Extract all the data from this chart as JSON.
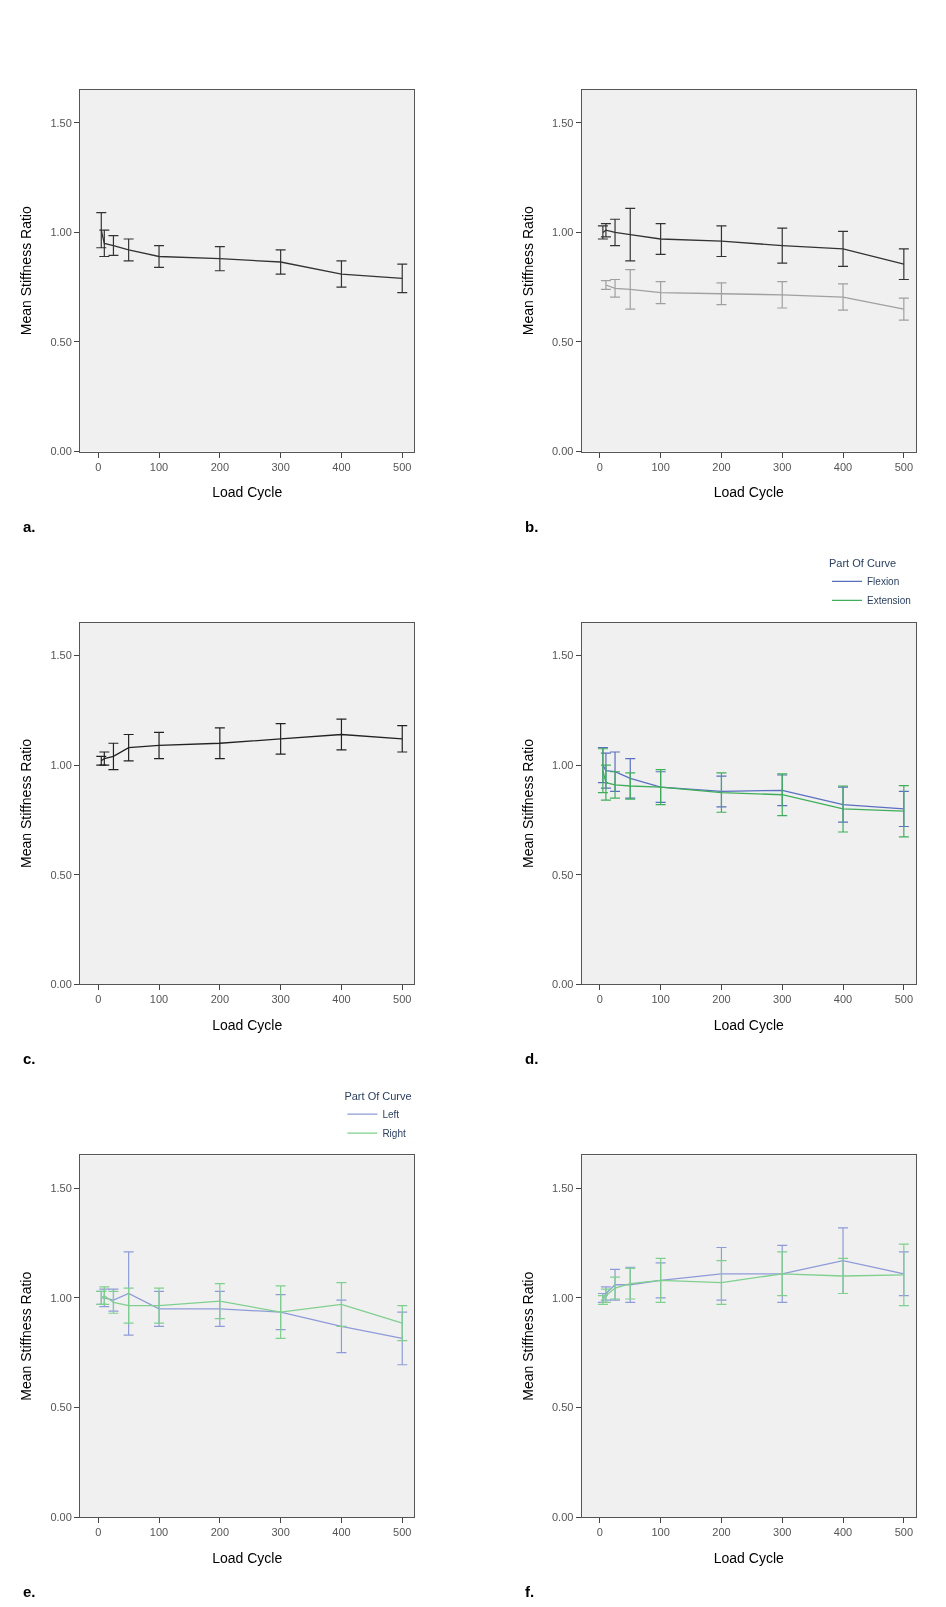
{
  "chart_data": [
    {
      "type": "line",
      "xlabel": "Load Cycle",
      "ylabel": "Mean Stiffness Ratio",
      "annotations": [
        "a."
      ],
      "x": [
        5,
        10,
        25,
        50,
        100,
        200,
        300,
        400,
        500
      ],
      "xlim": [
        -30,
        520
      ],
      "xticks": [
        0,
        100,
        200,
        300,
        400,
        500
      ],
      "ylim": [
        0,
        1.65
      ],
      "yticks": [
        {
          "value": 0,
          "label": "0.00"
        },
        {
          "value": 0.5,
          "label": "0.50"
        },
        {
          "value": 1,
          "label": "1.00"
        },
        {
          "value": 1.5,
          "label": "1.50"
        }
      ],
      "grid": false,
      "legend": false,
      "marker": "none",
      "series": [
        {
          "color": "#333333",
          "values": [
            1.01,
            0.95,
            0.94,
            0.92,
            0.89,
            0.88,
            0.865,
            0.81,
            0.79
          ],
          "errors": [
            0.08,
            0.06,
            0.045,
            0.05,
            0.05,
            0.055,
            0.055,
            0.06,
            0.065
          ]
        }
      ]
    },
    {
      "type": "line",
      "xlabel": "Load Cycle",
      "ylabel": "Mean Stiffness Ratio",
      "annotations": [
        "b."
      ],
      "x": [
        5,
        10,
        25,
        50,
        100,
        200,
        300,
        400,
        500
      ],
      "xlim": [
        -30,
        520
      ],
      "xticks": [
        0,
        100,
        200,
        300,
        400,
        500
      ],
      "ylim": [
        0,
        1.65
      ],
      "yticks": [
        {
          "value": 0,
          "label": "0.00"
        },
        {
          "value": 0.5,
          "label": "0.50"
        },
        {
          "value": 1,
          "label": "1.00"
        },
        {
          "value": 1.5,
          "label": "1.50"
        }
      ],
      "grid": false,
      "legend": false,
      "marker": "none",
      "series": [
        {
          "color": "#333333",
          "values": [
            1.0,
            1.01,
            1.0,
            0.99,
            0.97,
            0.96,
            0.94,
            0.925,
            0.855
          ],
          "errors": [
            0.03,
            0.03,
            0.06,
            0.12,
            0.07,
            0.07,
            0.08,
            0.08,
            0.07
          ]
        },
        {
          "color": "#a0a0a0",
          "x": [
            10,
            25,
            50,
            100,
            200,
            300,
            400,
            500
          ],
          "values": [
            0.76,
            0.745,
            0.74,
            0.725,
            0.72,
            0.715,
            0.705,
            0.65
          ],
          "errors": [
            0.02,
            0.04,
            0.09,
            0.05,
            0.05,
            0.06,
            0.06,
            0.05
          ]
        }
      ]
    },
    {
      "type": "line",
      "xlabel": "Load Cycle",
      "ylabel": "Mean Stiffness Ratio",
      "annotations": [
        "c."
      ],
      "x": [
        5,
        10,
        25,
        50,
        100,
        200,
        300,
        400,
        500
      ],
      "xlim": [
        -30,
        520
      ],
      "xticks": [
        0,
        100,
        200,
        300,
        400,
        500
      ],
      "ylim": [
        0,
        1.65
      ],
      "yticks": [
        {
          "value": 0,
          "label": "0.00"
        },
        {
          "value": 0.5,
          "label": "0.50"
        },
        {
          "value": 1,
          "label": "1.00"
        },
        {
          "value": 1.5,
          "label": "1.50"
        }
      ],
      "grid": false,
      "legend": false,
      "marker": "none",
      "series": [
        {
          "color": "#222222",
          "values": [
            1.02,
            1.03,
            1.04,
            1.08,
            1.09,
            1.1,
            1.12,
            1.14,
            1.12
          ],
          "errors": [
            0.02,
            0.03,
            0.06,
            0.06,
            0.06,
            0.07,
            0.07,
            0.07,
            0.06
          ]
        }
      ]
    },
    {
      "type": "line",
      "xlabel": "Load Cycle",
      "ylabel": "Mean Stiffness Ratio",
      "annotations": [
        "d."
      ],
      "legend_title": "Part Of Curve",
      "x": [
        5,
        10,
        25,
        50,
        100,
        200,
        300,
        400,
        500
      ],
      "xlim": [
        -30,
        520
      ],
      "xticks": [
        0,
        100,
        200,
        300,
        400,
        500
      ],
      "ylim": [
        0,
        1.65
      ],
      "yticks": [
        {
          "value": 0,
          "label": "0.00"
        },
        {
          "value": 0.5,
          "label": "0.50"
        },
        {
          "value": 1,
          "label": "1.00"
        },
        {
          "value": 1.5,
          "label": "1.50"
        }
      ],
      "grid": false,
      "legend": "top right",
      "marker": "none",
      "series": [
        {
          "name": "Flexion",
          "color": "#5a6fc0",
          "values": [
            1.0,
            0.975,
            0.97,
            0.94,
            0.9,
            0.88,
            0.885,
            0.82,
            0.8
          ],
          "errors": [
            0.08,
            0.08,
            0.09,
            0.09,
            0.07,
            0.07,
            0.07,
            0.08,
            0.08
          ]
        },
        {
          "name": "Extension",
          "color": "#3fae5a",
          "values": [
            0.975,
            0.92,
            0.91,
            0.905,
            0.9,
            0.875,
            0.865,
            0.8,
            0.79
          ],
          "errors": [
            0.1,
            0.08,
            0.06,
            0.06,
            0.08,
            0.09,
            0.095,
            0.105,
            0.117
          ]
        }
      ]
    },
    {
      "type": "line",
      "xlabel": "Load Cycle",
      "ylabel": "Mean Stiffness Ratio",
      "annotations": [
        "e."
      ],
      "legend_title": "Part Of Curve",
      "x": [
        5,
        10,
        25,
        50,
        100,
        200,
        300,
        400,
        500
      ],
      "xlim": [
        -30,
        520
      ],
      "xticks": [
        0,
        100,
        200,
        300,
        400,
        500
      ],
      "ylim": [
        0,
        1.65
      ],
      "yticks": [
        {
          "value": 0,
          "label": "0.00"
        },
        {
          "value": 0.5,
          "label": "0.50"
        },
        {
          "value": 1,
          "label": "1.00"
        },
        {
          "value": 1.5,
          "label": "1.50"
        }
      ],
      "grid": false,
      "legend": "top right",
      "marker": "none",
      "series": [
        {
          "name": "Left",
          "color": "#8e9bd8",
          "values": [
            1.0,
            1.0,
            0.99,
            1.02,
            0.95,
            0.95,
            0.935,
            0.87,
            0.815
          ],
          "errors": [
            0.03,
            0.04,
            0.05,
            0.19,
            0.08,
            0.08,
            0.08,
            0.12,
            0.12
          ]
        },
        {
          "name": "Right",
          "color": "#7fd08e",
          "values": [
            1.0,
            1.01,
            0.98,
            0.965,
            0.965,
            0.985,
            0.935,
            0.97,
            0.885
          ],
          "errors": [
            0.03,
            0.04,
            0.05,
            0.08,
            0.08,
            0.08,
            0.12,
            0.1,
            0.08
          ]
        }
      ]
    },
    {
      "type": "line",
      "xlabel": "Load Cycle",
      "ylabel": "Mean Stiffness Ratio",
      "annotations": [
        "f."
      ],
      "x": [
        5,
        10,
        25,
        50,
        100,
        200,
        300,
        400,
        500
      ],
      "xlim": [
        -30,
        520
      ],
      "xticks": [
        0,
        100,
        200,
        300,
        400,
        500
      ],
      "ylim": [
        0,
        1.65
      ],
      "yticks": [
        {
          "value": 0,
          "label": "0.00"
        },
        {
          "value": 0.5,
          "label": "0.50"
        },
        {
          "value": 1,
          "label": "1.00"
        },
        {
          "value": 1.5,
          "label": "1.50"
        }
      ],
      "grid": false,
      "legend": false,
      "marker": "none",
      "series": [
        {
          "color": "#8e9bd8",
          "values": [
            1.0,
            1.02,
            1.06,
            1.06,
            1.08,
            1.11,
            1.11,
            1.17,
            1.11
          ],
          "errors": [
            0.02,
            0.03,
            0.07,
            0.08,
            0.08,
            0.12,
            0.13,
            0.15,
            0.1
          ]
        },
        {
          "color": "#7fd08e",
          "values": [
            0.99,
            1.01,
            1.045,
            1.065,
            1.08,
            1.07,
            1.11,
            1.1,
            1.105
          ],
          "errors": [
            0.02,
            0.03,
            0.05,
            0.07,
            0.1,
            0.1,
            0.1,
            0.08,
            0.14
          ]
        }
      ]
    }
  ]
}
